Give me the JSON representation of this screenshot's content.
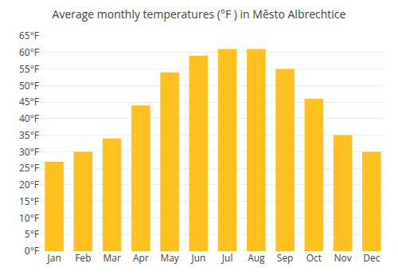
{
  "chart_data": {
    "type": "bar",
    "title": "Average monthly temperatures (°F ) in Město Albrechtice",
    "categories": [
      "Jan",
      "Feb",
      "Mar",
      "Apr",
      "May",
      "Jun",
      "Jul",
      "Aug",
      "Sep",
      "Oct",
      "Nov",
      "Dec"
    ],
    "values": [
      27,
      30,
      34,
      44,
      54,
      59,
      61,
      61,
      55,
      46,
      35,
      30
    ],
    "color": "#FFC020",
    "ylim": [
      0,
      65
    ],
    "yticks": [
      {
        "value": 0,
        "label": "0°F"
      },
      {
        "value": 5,
        "label": "5°F"
      },
      {
        "value": 10,
        "label": "10°F"
      },
      {
        "value": 15,
        "label": "15°F"
      },
      {
        "value": 20,
        "label": "20°F"
      },
      {
        "value": 25,
        "label": "25°F"
      },
      {
        "value": 30,
        "label": "30°F"
      },
      {
        "value": 35,
        "label": "35°F"
      },
      {
        "value": 40,
        "label": "40°F"
      },
      {
        "value": 45,
        "label": "45°F"
      },
      {
        "value": 50,
        "label": "50°F"
      },
      {
        "value": 55,
        "label": "55°F"
      },
      {
        "value": 60,
        "label": "60°F"
      },
      {
        "value": 65,
        "label": "65°F"
      }
    ],
    "grid": true
  }
}
